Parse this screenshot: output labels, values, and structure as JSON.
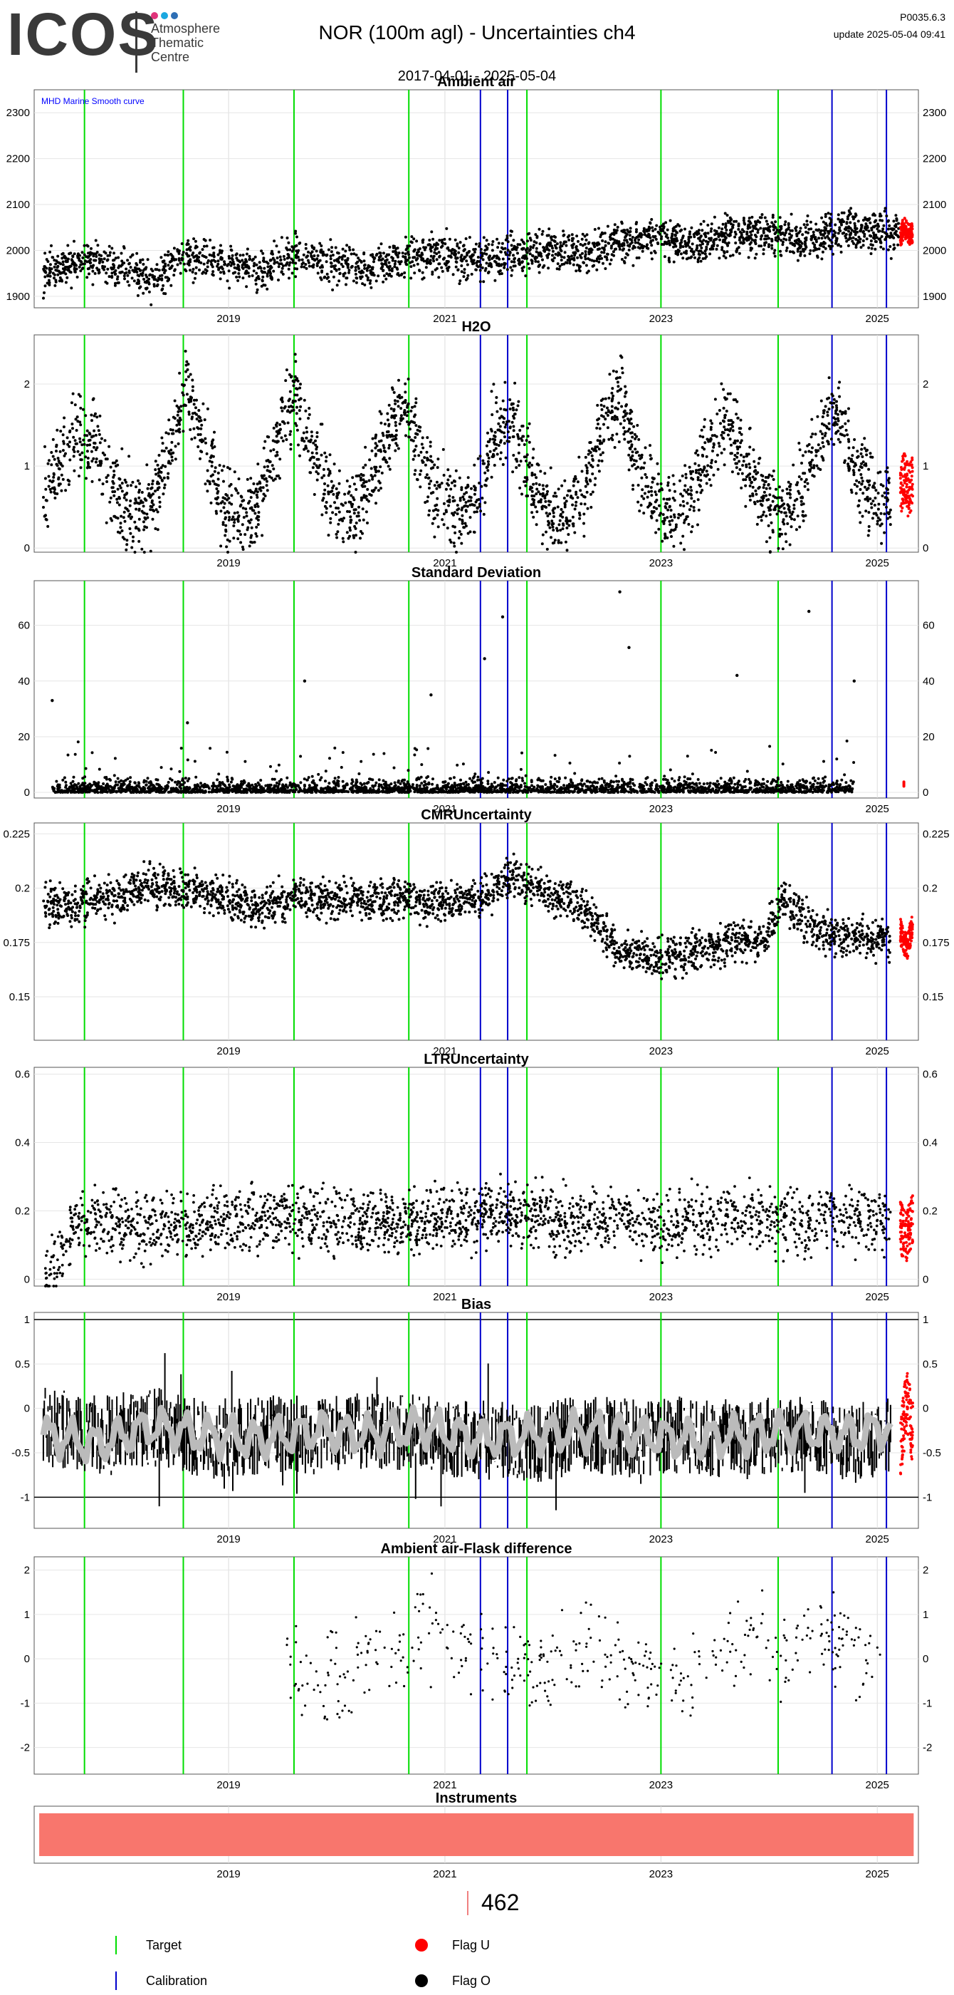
{
  "header": {
    "logo_text": "ICOS",
    "logo_subtitle": [
      "Atmosphere",
      "Thematic",
      "Centre"
    ],
    "logo_dot_colors": [
      "#e0337a",
      "#1ba8e0",
      "#2e6fb5"
    ],
    "title": "NOR  (100m agl) - Uncertainties ch4",
    "date_range": "2017-04-01 - 2025-05-04",
    "version": "P0035.6.3",
    "update": "update  2025-05-04 09:41"
  },
  "colors": {
    "target": "#00dd00",
    "calibration": "#0000cc",
    "flag_u": "#ff0000",
    "flag_o": "#000000",
    "smooth": "#bbbbbb",
    "instrument_bar": "#f8766d",
    "annotation": "#0000ff"
  },
  "xaxis": {
    "range": [
      "2017-03-15",
      "2025-05-20"
    ],
    "ticks": [
      "2019",
      "2021",
      "2023",
      "2025"
    ]
  },
  "markers": {
    "target": [
      "2017-09-01",
      "2018-08-01",
      "2019-08-10",
      "2020-09-01",
      "2021-10-05",
      "2023-01-01",
      "2024-02-01"
    ],
    "calibration": [
      "2021-05-01",
      "2021-08-01",
      "2024-08-01",
      "2025-02-01"
    ]
  },
  "chart_data": [
    {
      "type": "scatter",
      "title": "Ambient air",
      "annotation": "MHD Marine Smooth curve",
      "ylim": [
        1875,
        2350
      ],
      "yticks": [
        1900,
        2000,
        2100,
        2200,
        2300
      ],
      "series": [
        {
          "flag": "O",
          "x": [
            "2017-04",
            "2017-08",
            "2017-12",
            "2018-04",
            "2018-08",
            "2018-12",
            "2019-04",
            "2019-08",
            "2019-12",
            "2020-04",
            "2020-08",
            "2020-12",
            "2021-04",
            "2021-08",
            "2021-12",
            "2022-04",
            "2022-08",
            "2022-12",
            "2023-04",
            "2023-08",
            "2023-12",
            "2024-04",
            "2024-08",
            "2024-12",
            "2025-03"
          ],
          "y": [
            1950,
            1975,
            1965,
            1940,
            1985,
            1975,
            1955,
            1990,
            1970,
            1960,
            1985,
            1990,
            1975,
            1995,
            2000,
            1995,
            2020,
            2030,
            2010,
            2030,
            2040,
            2020,
            2040,
            2045,
            2040
          ]
        },
        {
          "flag": "U",
          "x": [
            "2025-03-20",
            "2025-04-01",
            "2025-04-15",
            "2025-05-01"
          ],
          "y": [
            2030,
            2050,
            2035,
            2040
          ]
        }
      ]
    },
    {
      "type": "scatter",
      "title": "H2O",
      "ylim": [
        -0.05,
        2.6
      ],
      "yticks": [
        0,
        1,
        2
      ],
      "series": [
        {
          "flag": "O",
          "x": [
            "2017-04",
            "2017-06",
            "2017-08",
            "2017-10",
            "2017-12",
            "2018-02",
            "2018-04",
            "2018-06",
            "2018-08",
            "2018-10",
            "2018-12",
            "2019-02",
            "2019-04",
            "2019-06",
            "2019-08",
            "2019-10",
            "2019-12",
            "2020-02",
            "2020-04",
            "2020-06",
            "2020-08",
            "2020-10",
            "2020-12",
            "2021-02",
            "2021-04",
            "2021-06",
            "2021-08",
            "2021-10",
            "2021-12",
            "2022-02",
            "2022-04",
            "2022-06",
            "2022-08",
            "2022-10",
            "2022-12",
            "2023-02",
            "2023-04",
            "2023-06",
            "2023-08",
            "2023-10",
            "2023-12",
            "2024-02",
            "2024-04",
            "2024-06",
            "2024-08",
            "2024-10",
            "2024-12",
            "2025-02"
          ],
          "y": [
            0.6,
            1.1,
            1.4,
            1.2,
            0.6,
            0.4,
            0.6,
            1.2,
            2.0,
            1.2,
            0.5,
            0.4,
            0.6,
            1.3,
            1.9,
            1.2,
            0.6,
            0.4,
            0.7,
            1.3,
            1.8,
            1.1,
            0.6,
            0.4,
            0.6,
            1.4,
            1.5,
            0.9,
            0.5,
            0.4,
            0.7,
            1.5,
            1.9,
            1.0,
            0.6,
            0.4,
            0.7,
            1.2,
            1.6,
            1.0,
            0.6,
            0.4,
            0.7,
            1.3,
            1.7,
            1.0,
            0.6,
            0.5
          ]
        },
        {
          "flag": "U",
          "x": [
            "2025-03-20",
            "2025-04-01",
            "2025-04-15",
            "2025-05-01"
          ],
          "y": [
            0.6,
            0.9,
            0.7,
            0.8
          ]
        }
      ]
    },
    {
      "type": "scatter",
      "title": "Standard Deviation",
      "ylim": [
        -2,
        76
      ],
      "yticks": [
        0,
        20,
        40,
        60
      ],
      "series": [
        {
          "flag": "O",
          "x": [
            "2017-05",
            "2018-08",
            "2019-09",
            "2020-11",
            "2021-05",
            "2021-07",
            "2022-08",
            "2022-09",
            "2023-09",
            "2024-05",
            "2024-10"
          ],
          "y": [
            33,
            25,
            40,
            35,
            48,
            63,
            72,
            52,
            42,
            65,
            40
          ]
        },
        {
          "flag": "U",
          "x": [
            "2025-04-01"
          ],
          "y": [
            3
          ]
        }
      ]
    },
    {
      "type": "scatter",
      "title": "CMRUncertainty",
      "ylim": [
        0.13,
        0.23
      ],
      "yticks": [
        0.15,
        0.175,
        0.2,
        0.225
      ],
      "series": [
        {
          "flag": "O",
          "x": [
            "2017-04",
            "2017-08",
            "2017-12",
            "2018-04",
            "2018-08",
            "2018-12",
            "2019-04",
            "2019-08",
            "2019-12",
            "2020-04",
            "2020-08",
            "2020-12",
            "2021-04",
            "2021-08",
            "2021-12",
            "2022-04",
            "2022-08",
            "2022-12",
            "2023-04",
            "2023-08",
            "2023-12",
            "2024-02",
            "2024-06",
            "2024-10",
            "2025-02"
          ],
          "y": [
            0.192,
            0.193,
            0.196,
            0.202,
            0.199,
            0.195,
            0.19,
            0.196,
            0.194,
            0.194,
            0.195,
            0.193,
            0.194,
            0.205,
            0.198,
            0.19,
            0.17,
            0.168,
            0.17,
            0.175,
            0.176,
            0.195,
            0.18,
            0.176,
            0.177
          ]
        },
        {
          "flag": "U",
          "x": [
            "2025-03-20",
            "2025-04-10",
            "2025-05-01"
          ],
          "y": [
            0.18,
            0.172,
            0.183
          ]
        }
      ]
    },
    {
      "type": "scatter",
      "title": "LTRUncertainty",
      "ylim": [
        -0.02,
        0.62
      ],
      "yticks": [
        0.0,
        0.2,
        0.4,
        0.6
      ],
      "series": [
        {
          "flag": "O",
          "x": [
            "2017-04",
            "2017-08",
            "2018-02",
            "2018-08",
            "2019-02",
            "2019-08",
            "2020-02",
            "2020-08",
            "2021-02",
            "2021-08",
            "2022-02",
            "2022-08",
            "2023-02",
            "2023-08",
            "2024-02",
            "2024-08",
            "2025-02"
          ],
          "y": [
            0.0,
            0.18,
            0.15,
            0.16,
            0.17,
            0.18,
            0.17,
            0.16,
            0.18,
            0.19,
            0.17,
            0.18,
            0.16,
            0.18,
            0.17,
            0.18,
            0.17
          ]
        },
        {
          "flag": "U",
          "x": [
            "2025-03-20",
            "2025-04-10",
            "2025-05-01"
          ],
          "y": [
            0.15,
            0.12,
            0.18
          ]
        }
      ]
    },
    {
      "type": "scatter",
      "title": "Bias",
      "ylim": [
        -1.35,
        1.08
      ],
      "yticks": [
        -1.0,
        -0.5,
        0.0,
        0.5,
        1.0
      ],
      "hlines": [
        -1,
        1
      ],
      "series": [
        {
          "flag": "O",
          "x": [
            "2017-04",
            "2017-10",
            "2018-04",
            "2018-10",
            "2019-04",
            "2019-10",
            "2020-04",
            "2020-10",
            "2021-04",
            "2021-10",
            "2022-04",
            "2022-10",
            "2023-04",
            "2023-10",
            "2024-04",
            "2024-10",
            "2025-02"
          ],
          "y": [
            -0.2,
            -0.3,
            -0.2,
            -0.35,
            -0.3,
            -0.3,
            -0.25,
            -0.3,
            -0.35,
            -0.4,
            -0.3,
            -0.35,
            -0.3,
            -0.35,
            -0.3,
            -0.4,
            -0.3
          ]
        },
        {
          "flag": "smooth",
          "x": [
            "2017-04",
            "2017-10",
            "2018-04",
            "2018-10",
            "2019-04",
            "2019-10",
            "2020-04",
            "2020-10",
            "2021-04",
            "2021-10",
            "2022-04",
            "2022-10",
            "2023-04",
            "2023-10",
            "2024-04",
            "2024-10",
            "2025-02"
          ],
          "y": [
            -0.3,
            -0.4,
            -0.2,
            -0.3,
            -0.35,
            -0.25,
            -0.3,
            -0.2,
            -0.35,
            -0.3,
            -0.25,
            -0.3,
            -0.35,
            -0.3,
            -0.25,
            -0.3,
            -0.2
          ]
        },
        {
          "flag": "U",
          "x": [
            "2025-03-20",
            "2025-04-10",
            "2025-05-01"
          ],
          "y": [
            -0.5,
            0.1,
            -0.3
          ]
        }
      ]
    },
    {
      "type": "scatter",
      "title": "Ambient air-Flask difference",
      "ylim": [
        -2.6,
        2.3
      ],
      "yticks": [
        -2,
        -1,
        0,
        1,
        2
      ],
      "series": [
        {
          "flag": "O",
          "x": [
            "2019-07",
            "2019-10",
            "2020-01",
            "2020-04",
            "2020-07",
            "2020-10",
            "2021-01",
            "2021-04",
            "2021-07",
            "2021-10",
            "2022-01",
            "2022-04",
            "2022-07",
            "2022-10",
            "2023-01",
            "2023-04",
            "2023-07",
            "2023-10",
            "2024-01",
            "2024-04",
            "2024-07",
            "2024-10",
            "2025-01"
          ],
          "y": [
            0.3,
            -0.2,
            -0.4,
            -0.1,
            0.2,
            0.6,
            0.5,
            0.1,
            0.0,
            -0.3,
            -0.2,
            0.3,
            0.2,
            -0.1,
            -0.5,
            -0.6,
            0.2,
            0.4,
            0.1,
            0.5,
            0.6,
            0.1,
            0.0
          ]
        }
      ]
    },
    {
      "type": "bar",
      "title": "Instruments",
      "categories": [
        "462"
      ],
      "x_start": "2017-04-01",
      "x_end": "2025-05-04"
    }
  ],
  "legend": {
    "count": "462",
    "target": "Target",
    "calibration": "Calibration",
    "flag_u": "Flag U",
    "flag_o": "Flag O"
  }
}
